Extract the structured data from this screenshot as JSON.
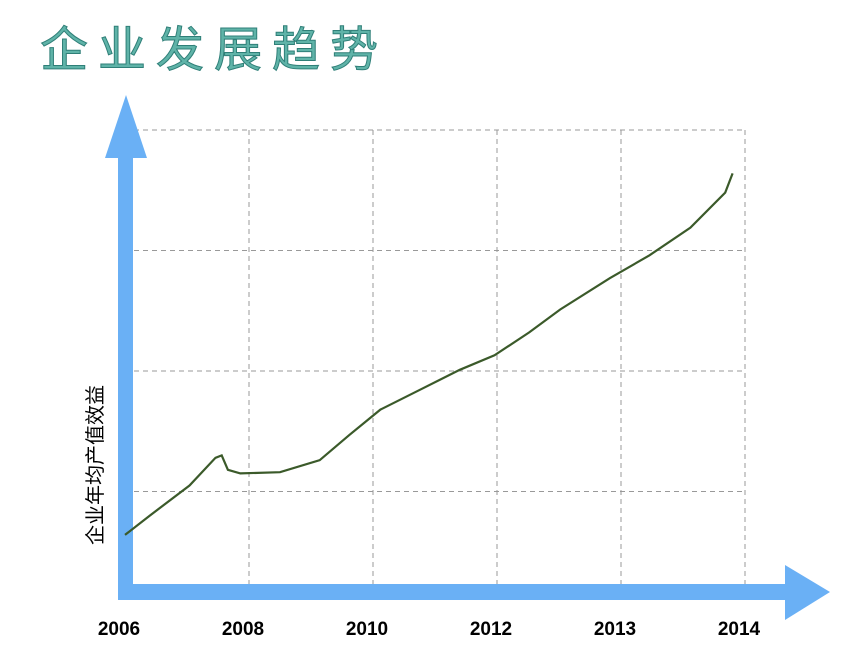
{
  "chart_data": {
    "type": "line",
    "title": "企业发展趋势",
    "y_label": "企业年均产值效益",
    "categories": [
      "2006",
      "2008",
      "2010",
      "2012",
      "2013",
      "2014"
    ],
    "ylim": [
      0,
      4
    ],
    "yticks": [
      1,
      2,
      3,
      4
    ],
    "grid": true,
    "series": [
      {
        "color": "#3b5a2a",
        "x": [
          0,
          0.2,
          0.52,
          0.73,
          0.78,
          0.83,
          0.93,
          1.25,
          1.57,
          1.81,
          2.06,
          2.37,
          2.7,
          2.98,
          3.26,
          3.51,
          3.91,
          4.23,
          4.56,
          4.84,
          4.9
        ],
        "values": [
          0.64,
          0.8,
          1.05,
          1.28,
          1.3,
          1.18,
          1.15,
          1.16,
          1.26,
          1.47,
          1.68,
          1.84,
          2.01,
          2.13,
          2.32,
          2.51,
          2.77,
          2.96,
          3.19,
          3.48,
          3.64
        ]
      }
    ]
  }
}
